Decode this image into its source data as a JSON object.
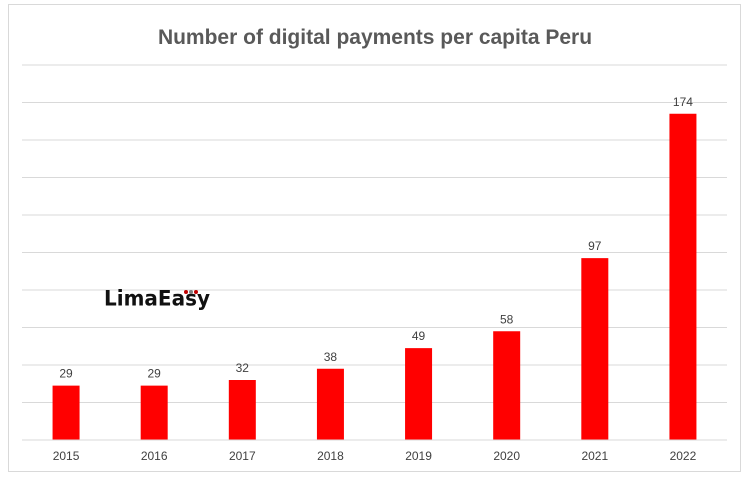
{
  "chart_data": {
    "type": "bar",
    "title": "Number of digital payments per capita Peru",
    "categories": [
      "2015",
      "2016",
      "2017",
      "2018",
      "2019",
      "2020",
      "2021",
      "2022"
    ],
    "series": [
      {
        "values": [
          29,
          29,
          32,
          38,
          49,
          58,
          97,
          174
        ]
      }
    ],
    "ylim": [
      0,
      200
    ],
    "grid": true,
    "y_axis_labels_shown": false,
    "bar_color": "#ff0000"
  },
  "logo": {
    "text": "LimaEasy",
    "accent_color": "#c00000"
  }
}
